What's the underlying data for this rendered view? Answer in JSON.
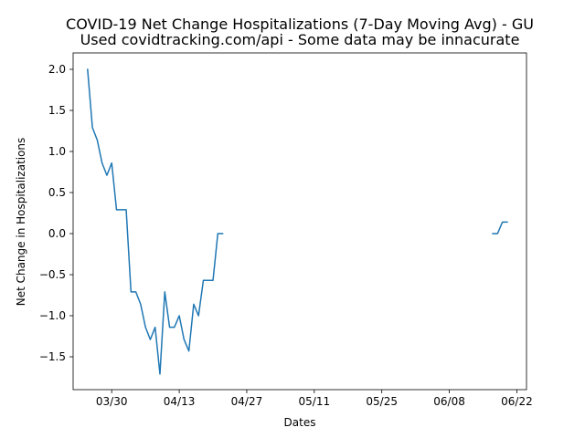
{
  "chart_data": {
    "type": "line",
    "title": "COVID-19 Net Change Hospitalizations (7-Day Moving Avg) - GU",
    "subtitle": "Used covidtracking.com/api - Some data may be innacurate",
    "xlabel": "Dates",
    "ylabel": "Net Change in Hospitalizations",
    "year": 2020,
    "xlim": [
      "2020-03-22",
      "2020-06-24"
    ],
    "ylim": [
      -1.9,
      2.2
    ],
    "x_ticks": [
      "03/30",
      "04/13",
      "04/27",
      "05/11",
      "05/25",
      "06/08",
      "06/22"
    ],
    "y_ticks": [
      "−1.5",
      "−1.0",
      "−0.5",
      "0.0",
      "0.5",
      "1.0",
      "1.5",
      "2.0"
    ],
    "grid": false,
    "line_color": "#1f77b4",
    "series": [
      {
        "segments": [
          [
            [
              "2020-03-25",
              2.0
            ],
            [
              "2020-03-26",
              1.29
            ],
            [
              "2020-03-27",
              1.14
            ],
            [
              "2020-03-28",
              0.86
            ],
            [
              "2020-03-29",
              0.71
            ],
            [
              "2020-03-30",
              0.86
            ],
            [
              "2020-03-31",
              0.29
            ],
            [
              "2020-04-01",
              0.29
            ],
            [
              "2020-04-02",
              0.29
            ],
            [
              "2020-04-03",
              -0.71
            ],
            [
              "2020-04-04",
              -0.71
            ],
            [
              "2020-04-05",
              -0.86
            ],
            [
              "2020-04-06",
              -1.14
            ],
            [
              "2020-04-07",
              -1.29
            ],
            [
              "2020-04-08",
              -1.14
            ],
            [
              "2020-04-09",
              -1.71
            ],
            [
              "2020-04-10",
              -0.71
            ],
            [
              "2020-04-11",
              -1.14
            ],
            [
              "2020-04-12",
              -1.14
            ],
            [
              "2020-04-13",
              -1.0
            ],
            [
              "2020-04-14",
              -1.29
            ],
            [
              "2020-04-15",
              -1.43
            ],
            [
              "2020-04-16",
              -0.86
            ],
            [
              "2020-04-17",
              -1.0
            ],
            [
              "2020-04-18",
              -0.57
            ],
            [
              "2020-04-19",
              -0.57
            ],
            [
              "2020-04-20",
              -0.57
            ],
            [
              "2020-04-21",
              0.0
            ],
            [
              "2020-04-22",
              0.0
            ]
          ],
          [
            [
              "2020-06-17",
              0.0
            ],
            [
              "2020-06-18",
              0.0
            ],
            [
              "2020-06-19",
              0.14
            ],
            [
              "2020-06-20",
              0.14
            ]
          ]
        ]
      }
    ]
  }
}
